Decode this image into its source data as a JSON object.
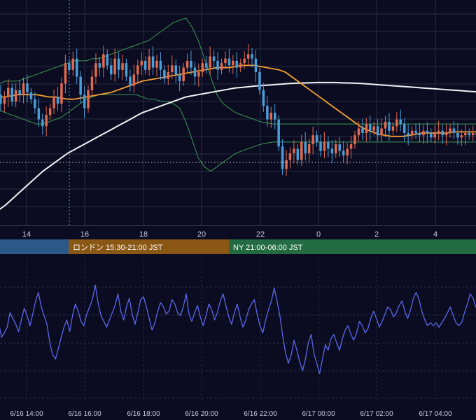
{
  "chart_data": [
    {
      "type": "candlestick",
      "title": "",
      "overlays": [
        {
          "kind": "moving-average-short",
          "color": "#f5a030"
        },
        {
          "kind": "moving-average-long",
          "color": "#f2f2f2"
        },
        {
          "kind": "bollinger-bands",
          "color": "#3c9a52"
        }
      ],
      "x_ticks": [
        "14",
        "16",
        "18",
        "20",
        "22",
        "0",
        "2",
        "4"
      ],
      "ylim": [
        0,
        100
      ],
      "candles": [
        [
          56,
          51
        ],
        [
          51,
          58
        ],
        [
          58,
          54
        ],
        [
          54,
          57
        ],
        [
          57,
          61
        ],
        [
          61,
          55
        ],
        [
          55,
          60
        ],
        [
          60,
          58
        ],
        [
          58,
          63
        ],
        [
          63,
          59
        ],
        [
          59,
          56
        ],
        [
          56,
          52
        ],
        [
          52,
          47
        ],
        [
          47,
          44
        ],
        [
          44,
          49
        ],
        [
          49,
          52
        ],
        [
          52,
          57
        ],
        [
          57,
          54
        ],
        [
          54,
          63
        ],
        [
          63,
          72
        ],
        [
          72,
          69
        ],
        [
          69,
          74
        ],
        [
          74,
          66
        ],
        [
          66,
          58
        ],
        [
          58,
          52
        ],
        [
          52,
          60
        ],
        [
          60,
          66
        ],
        [
          66,
          72
        ],
        [
          72,
          70
        ],
        [
          70,
          76
        ],
        [
          76,
          71
        ],
        [
          71,
          67
        ],
        [
          67,
          74
        ],
        [
          74,
          69
        ],
        [
          69,
          72
        ],
        [
          72,
          66
        ],
        [
          66,
          62
        ],
        [
          62,
          67
        ],
        [
          67,
          71
        ],
        [
          71,
          73
        ],
        [
          73,
          69
        ],
        [
          69,
          75
        ],
        [
          75,
          70
        ],
        [
          70,
          73
        ],
        [
          73,
          69
        ],
        [
          69,
          65
        ],
        [
          65,
          68
        ],
        [
          68,
          71
        ],
        [
          71,
          67
        ],
        [
          67,
          64
        ],
        [
          64,
          70
        ],
        [
          70,
          73
        ],
        [
          73,
          70
        ],
        [
          70,
          66
        ],
        [
          66,
          68
        ],
        [
          68,
          72
        ],
        [
          72,
          70
        ],
        [
          70,
          75
        ],
        [
          75,
          73
        ],
        [
          73,
          69
        ],
        [
          69,
          72
        ],
        [
          72,
          74
        ],
        [
          74,
          71
        ],
        [
          71,
          73
        ],
        [
          73,
          70
        ],
        [
          70,
          72
        ],
        [
          72,
          74
        ],
        [
          74,
          76
        ],
        [
          76,
          74
        ],
        [
          74,
          68
        ],
        [
          68,
          60
        ],
        [
          60,
          53
        ],
        [
          53,
          47
        ],
        [
          47,
          50
        ],
        [
          50,
          47
        ],
        [
          47,
          35
        ],
        [
          35,
          25
        ],
        [
          25,
          29
        ],
        [
          29,
          32
        ],
        [
          32,
          34
        ],
        [
          34,
          29
        ],
        [
          29,
          37
        ],
        [
          37,
          32
        ],
        [
          32,
          36
        ],
        [
          36,
          40
        ],
        [
          40,
          37
        ],
        [
          37,
          33
        ],
        [
          33,
          37
        ],
        [
          37,
          34
        ],
        [
          34,
          32
        ],
        [
          32,
          36
        ],
        [
          36,
          33
        ],
        [
          33,
          31
        ],
        [
          31,
          34
        ],
        [
          34,
          36
        ],
        [
          36,
          40
        ],
        [
          40,
          43
        ],
        [
          43,
          41
        ],
        [
          41,
          45
        ],
        [
          45,
          42
        ],
        [
          42,
          44
        ],
        [
          44,
          40
        ],
        [
          40,
          43
        ],
        [
          43,
          46
        ],
        [
          46,
          42
        ],
        [
          42,
          44
        ],
        [
          44,
          47
        ],
        [
          47,
          45
        ],
        [
          45,
          41
        ],
        [
          41,
          40
        ],
        [
          40,
          42
        ],
        [
          42,
          41
        ],
        [
          41,
          40
        ],
        [
          40,
          42
        ],
        [
          42,
          41
        ],
        [
          41,
          39
        ],
        [
          39,
          41
        ],
        [
          41,
          42
        ],
        [
          42,
          40
        ],
        [
          40,
          41
        ],
        [
          41,
          43
        ],
        [
          43,
          41
        ],
        [
          41,
          39
        ],
        [
          39,
          40
        ],
        [
          40,
          41
        ],
        [
          41,
          40
        ],
        [
          40,
          41
        ],
        [
          41,
          40
        ],
        [
          40,
          41
        ],
        [
          41,
          40
        ]
      ],
      "ma_short": [
        57,
        57,
        57,
        57.5,
        58,
        58,
        58,
        58,
        57.5,
        57,
        57,
        56.5,
        56,
        56,
        56.5,
        57,
        57.5,
        58,
        58.5,
        59,
        60,
        61,
        62,
        63,
        64,
        64.5,
        65,
        65.5,
        66,
        66.5,
        67,
        67.5,
        68,
        68.5,
        69,
        69.5,
        70,
        70,
        70,
        70.5,
        71,
        71,
        71,
        70.5,
        70,
        69.5,
        69,
        68,
        66,
        64,
        62,
        60,
        58,
        56,
        54,
        52,
        50,
        48,
        46,
        44,
        42.5,
        41.5,
        40.5,
        40,
        39.5,
        39.5,
        39.5,
        40,
        40.5,
        41,
        41,
        41,
        41,
        41,
        41.5,
        41.5,
        41.5,
        41.5,
        41.5,
        41.5
      ],
      "ma_long": [
        5,
        7,
        9,
        11.5,
        14,
        16.5,
        19,
        21.5,
        24,
        26,
        28,
        30,
        32,
        33.5,
        35,
        36.5,
        38,
        39.5,
        41,
        42.5,
        44,
        45.5,
        47,
        48.5,
        50,
        51,
        52,
        53,
        54,
        55,
        56,
        57,
        57.5,
        58,
        58.5,
        59,
        59.5,
        60,
        60.5,
        61,
        61.2,
        61.5,
        61.8,
        62,
        62.2,
        62.4,
        62.6,
        62.8,
        63,
        63.1,
        63.2,
        63.3,
        63.4,
        63.4,
        63.4,
        63.4,
        63.3,
        63.2,
        63.1,
        63,
        62.8,
        62.6,
        62.4,
        62.2,
        62,
        61.8,
        61.6,
        61.4,
        61.2,
        61,
        60.8,
        60.6,
        60.4,
        60.2,
        60,
        59.8,
        59.6,
        59.4,
        59.2,
        59
      ],
      "bb_upper": [
        62,
        63,
        64,
        64,
        64,
        65,
        66,
        67,
        68,
        69,
        70,
        71,
        72,
        73,
        73,
        73,
        74,
        74,
        75,
        76,
        77,
        78,
        79,
        80,
        81,
        82,
        84,
        86,
        88,
        90,
        91,
        92,
        88,
        82,
        74,
        66,
        58,
        54,
        52,
        50,
        49,
        48,
        47,
        46,
        45.5,
        45,
        45,
        45,
        45,
        45,
        45,
        45,
        45,
        45,
        45,
        45,
        45,
        45,
        45,
        45,
        45,
        45,
        45,
        45,
        45,
        45,
        45,
        45,
        45,
        45,
        45,
        45,
        45,
        45,
        45,
        45,
        45,
        45,
        45,
        45
      ],
      "bb_lower": [
        52,
        51,
        50,
        49,
        48,
        47,
        46,
        45,
        45,
        46,
        47,
        48,
        50,
        52,
        54,
        56,
        57,
        58,
        58,
        58,
        58,
        58,
        58,
        58,
        57,
        56,
        56,
        55,
        55,
        54,
        52,
        46,
        38,
        30,
        26,
        24,
        26,
        28,
        30,
        32,
        33,
        34,
        35,
        36,
        36.5,
        37,
        37,
        37,
        37,
        37,
        37,
        37,
        37,
        37,
        37,
        37,
        37,
        37,
        37,
        37,
        37,
        37,
        37,
        37,
        37,
        37,
        37,
        37,
        37,
        37,
        37,
        37,
        37,
        37,
        37,
        37,
        37,
        37,
        37,
        37
      ],
      "reference_level": 28,
      "colors": {
        "up": "#e06a4f",
        "down": "#4a9ed8",
        "grid": "#2a2c44",
        "tick_text": "#c8cae0"
      }
    },
    {
      "type": "line",
      "title": "",
      "xlabel": "",
      "ylabel": "",
      "x_ticks": [
        "6/16 14:00",
        "6/16 16:00",
        "6/16 18:00",
        "6/16 20:00",
        "6/16 22:00",
        "6/17 00:00",
        "6/17 02:00",
        "6/17 04:00"
      ],
      "ylim": [
        0,
        100
      ],
      "series": [
        {
          "color": "#5a68e8",
          "values": [
            60,
            70,
            55,
            45,
            48,
            52,
            62,
            58,
            54,
            49,
            57,
            65,
            60,
            53,
            61,
            70,
            76,
            66,
            60,
            54,
            41,
            33,
            30,
            37,
            45,
            52,
            57,
            49,
            60,
            68,
            63,
            56,
            53,
            61,
            66,
            71,
            81,
            69,
            60,
            56,
            52,
            57,
            62,
            67,
            75,
            63,
            57,
            66,
            72,
            61,
            54,
            62,
            71,
            73,
            66,
            58,
            50,
            55,
            63,
            69,
            66,
            61,
            63,
            71,
            68,
            62,
            60,
            66,
            75,
            61,
            56,
            62,
            67,
            59,
            53,
            60,
            68,
            64,
            57,
            62,
            70,
            75,
            67,
            59,
            54,
            62,
            68,
            59,
            52,
            57,
            64,
            68,
            71,
            61,
            53,
            48,
            57,
            64,
            70,
            79,
            70,
            60,
            46,
            34,
            27,
            33,
            43,
            36,
            28,
            22,
            30,
            41,
            47,
            34,
            27,
            20,
            30,
            40,
            36,
            44,
            47,
            41,
            36,
            44,
            50,
            53,
            47,
            43,
            48,
            56,
            53,
            48,
            51,
            58,
            63,
            58,
            52,
            56,
            61,
            66,
            64,
            59,
            62,
            67,
            70,
            63,
            58,
            64,
            72,
            76,
            71,
            63,
            57,
            53,
            55,
            53,
            55,
            52,
            55,
            58,
            62,
            66,
            60,
            55,
            53,
            55,
            62,
            68,
            75,
            72,
            66,
            61,
            63,
            67
          ]
        }
      ]
    }
  ],
  "session_bar": [
    {
      "label": "",
      "color": "#2c5888"
    },
    {
      "label": "ロンドン 15:30-21:00 JST",
      "color": "#8a5714"
    },
    {
      "label": "NY 21:00-06:00 JST",
      "color": "#236b40"
    }
  ]
}
